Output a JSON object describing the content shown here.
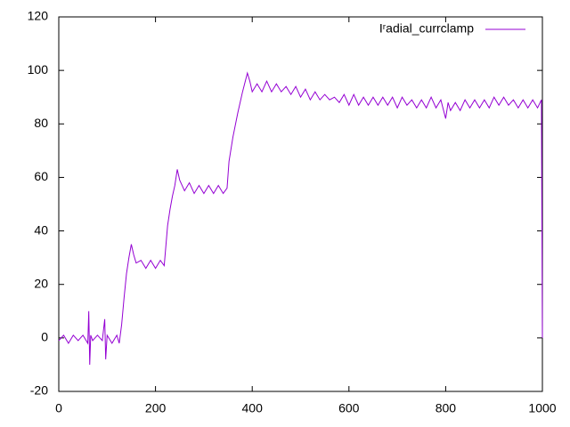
{
  "chart_data": {
    "type": "line",
    "legend_position": "top-right",
    "x": [
      0,
      10,
      20,
      30,
      40,
      50,
      60,
      62,
      64,
      66,
      70,
      80,
      90,
      95,
      97,
      100,
      110,
      120,
      125,
      130,
      135,
      140,
      145,
      150,
      155,
      160,
      170,
      180,
      190,
      200,
      210,
      218,
      225,
      230,
      235,
      240,
      245,
      250,
      255,
      260,
      270,
      280,
      290,
      300,
      310,
      320,
      330,
      340,
      348,
      352,
      360,
      370,
      380,
      390,
      395,
      400,
      410,
      420,
      430,
      440,
      450,
      460,
      470,
      480,
      490,
      500,
      510,
      520,
      530,
      540,
      550,
      560,
      570,
      580,
      590,
      600,
      610,
      620,
      630,
      640,
      650,
      660,
      670,
      680,
      690,
      700,
      710,
      720,
      730,
      740,
      750,
      760,
      770,
      780,
      790,
      800,
      805,
      810,
      820,
      830,
      840,
      850,
      860,
      870,
      880,
      890,
      900,
      910,
      920,
      930,
      940,
      950,
      960,
      970,
      980,
      990,
      998,
      1000
    ],
    "series": [
      {
        "name": "Iʳadial_currclamp",
        "color": "#9400d3",
        "values": [
          -1,
          1,
          -2,
          1,
          -1,
          1,
          -2,
          10,
          -10,
          1,
          -1,
          1,
          -1,
          7,
          -8,
          1,
          -2,
          1,
          -2,
          5,
          15,
          24,
          30,
          35,
          31,
          28,
          29,
          26,
          29,
          26,
          29,
          27,
          42,
          48,
          53,
          57,
          63,
          59,
          57,
          55,
          58,
          54,
          57,
          54,
          57,
          54,
          57,
          54,
          56,
          66,
          75,
          84,
          92,
          99,
          96,
          92,
          95,
          92,
          96,
          92,
          95,
          92,
          94,
          91,
          94,
          90,
          93,
          89,
          92,
          89,
          91,
          89,
          90,
          88,
          91,
          87,
          91,
          87,
          90,
          87,
          90,
          87,
          90,
          87,
          90,
          86,
          90,
          87,
          89,
          86,
          89,
          86,
          90,
          86,
          89,
          82,
          88,
          85,
          88,
          85,
          89,
          86,
          89,
          86,
          89,
          86,
          90,
          87,
          90,
          87,
          89,
          86,
          89,
          86,
          89,
          86,
          89,
          0
        ]
      }
    ],
    "xlim": [
      0,
      1000
    ],
    "xticks": [
      0,
      200,
      400,
      600,
      800,
      1000
    ],
    "ylim": [
      -20,
      120
    ],
    "yticks": [
      -20,
      0,
      20,
      40,
      60,
      80,
      100,
      120
    ]
  }
}
